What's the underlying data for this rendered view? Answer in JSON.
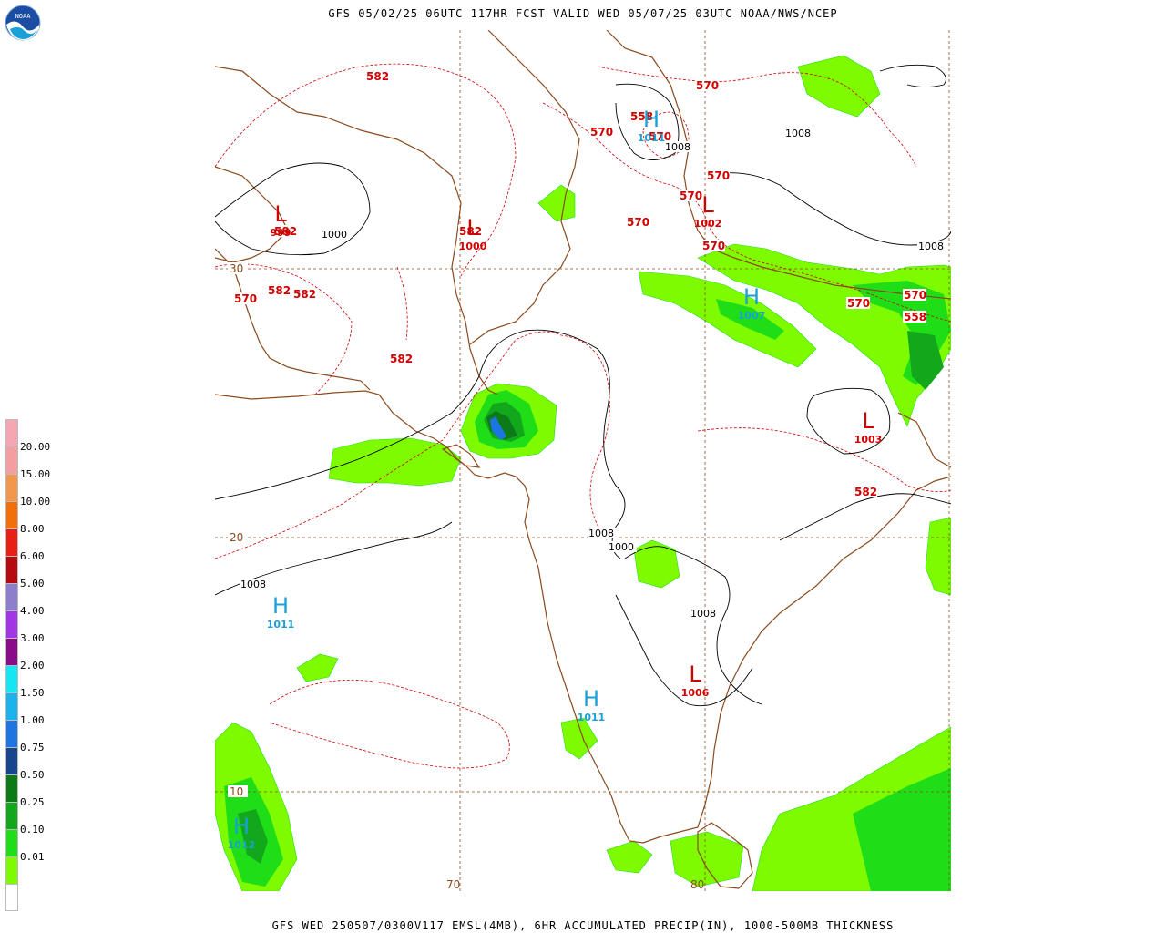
{
  "header": {
    "title": "GFS 05/02/25 06UTC 117HR FCST VALID WED 05/07/25 03UTC NOAA/NWS/NCEP"
  },
  "footer": {
    "caption": "GFS WED 250507/0300V117 EMSL(4MB), 6HR ACCUMULATED PRECIP(IN), 1000-500MB THICKNESS"
  },
  "logo": {
    "text": "NOAA",
    "icon": "noaa-logo"
  },
  "legend": {
    "title": "",
    "swatches": [
      {
        "value": "",
        "color": "#f6a6b2"
      },
      {
        "value": "20.00",
        "color": "#f49ea0"
      },
      {
        "value": "15.00",
        "color": "#f3974d"
      },
      {
        "value": "10.00",
        "color": "#f36f0a"
      },
      {
        "value": "8.00",
        "color": "#e81f14"
      },
      {
        "value": "6.00",
        "color": "#b50b10"
      },
      {
        "value": "5.00",
        "color": "#8d7fcc"
      },
      {
        "value": "4.00",
        "color": "#a236e6"
      },
      {
        "value": "3.00",
        "color": "#8a0c8a"
      },
      {
        "value": "2.00",
        "color": "#15e6f3"
      },
      {
        "value": "1.50",
        "color": "#1bb2ee"
      },
      {
        "value": "1.00",
        "color": "#1d74e3"
      },
      {
        "value": "0.75",
        "color": "#17458e"
      },
      {
        "value": "0.50",
        "color": "#0d7a18"
      },
      {
        "value": "0.25",
        "color": "#13a81c"
      },
      {
        "value": "0.10",
        "color": "#1fde18"
      },
      {
        "value": "0.01",
        "color": "#7ffb00"
      },
      {
        "value": "",
        "color": "#ffffff"
      }
    ]
  },
  "map": {
    "colors": {
      "coast": "#8b4a1e",
      "thickness": "#d10000",
      "isobar": "#000000",
      "high": "#1aa0d8",
      "low": "#d10000",
      "grid": "#8b4a1e",
      "precip_light": "#7ffb00",
      "precip_mid": "#1fde18",
      "precip_heavy": "#13a81c",
      "precip_dark": "#0d7a18",
      "precip_blue": "#1d74e3"
    },
    "lat_labels": [
      "30",
      "20",
      "10"
    ],
    "lon_labels": [
      "70",
      "80"
    ],
    "pressure_centers": [
      {
        "type": "L",
        "value": "999"
      },
      {
        "type": "L",
        "value": "1000"
      },
      {
        "type": "H",
        "value": "1011"
      },
      {
        "type": "L",
        "value": "1002"
      },
      {
        "type": "H",
        "value": "1007"
      },
      {
        "type": "L",
        "value": "1003"
      },
      {
        "type": "H",
        "value": "1011"
      },
      {
        "type": "L",
        "value": "1006"
      },
      {
        "type": "H",
        "value": "1011"
      },
      {
        "type": "H",
        "value": "1012"
      }
    ],
    "thickness_labels": [
      "582",
      "582",
      "582",
      "582",
      "582",
      "582",
      "582",
      "570",
      "570",
      "570",
      "570",
      "570",
      "570",
      "570",
      "570",
      "570",
      "558",
      "558",
      "570"
    ],
    "isobar_labels": [
      "1000",
      "1008",
      "1008",
      "1000",
      "1008",
      "1008",
      "1008",
      "1008"
    ]
  }
}
